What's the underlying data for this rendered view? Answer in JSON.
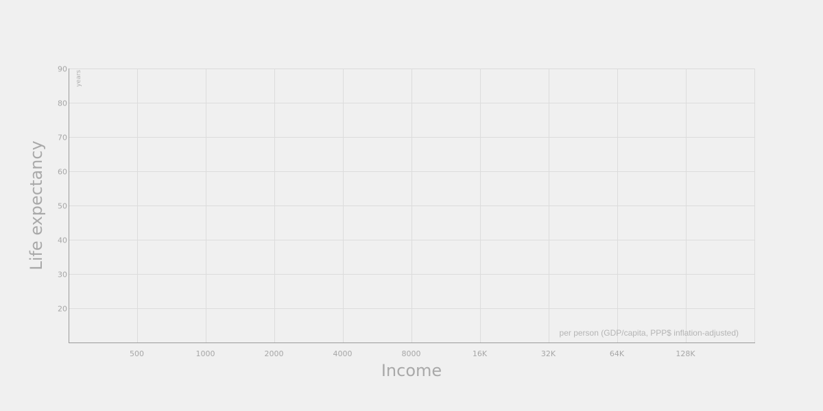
{
  "chart_data": {
    "type": "scatter",
    "xlabel": "Income",
    "xlabel_sub": "per person (GDP/capita, PPP$ inflation-adjusted)",
    "ylabel": "Life expectancy",
    "ylabel_unit": "years",
    "x_scale": "log",
    "x_ticks": [
      {
        "value": 500,
        "label": "500"
      },
      {
        "value": 1000,
        "label": "1000"
      },
      {
        "value": 2000,
        "label": "2000"
      },
      {
        "value": 4000,
        "label": "4000"
      },
      {
        "value": 8000,
        "label": "8000"
      },
      {
        "value": 16000,
        "label": "16K"
      },
      {
        "value": 32000,
        "label": "32K"
      },
      {
        "value": 64000,
        "label": "64K"
      },
      {
        "value": 128000,
        "label": "128K"
      }
    ],
    "xlim": [
      250,
      256000
    ],
    "y_ticks": [
      20,
      30,
      40,
      50,
      60,
      70,
      80,
      90
    ],
    "ylim": [
      10,
      90
    ],
    "grid": true,
    "series": []
  }
}
